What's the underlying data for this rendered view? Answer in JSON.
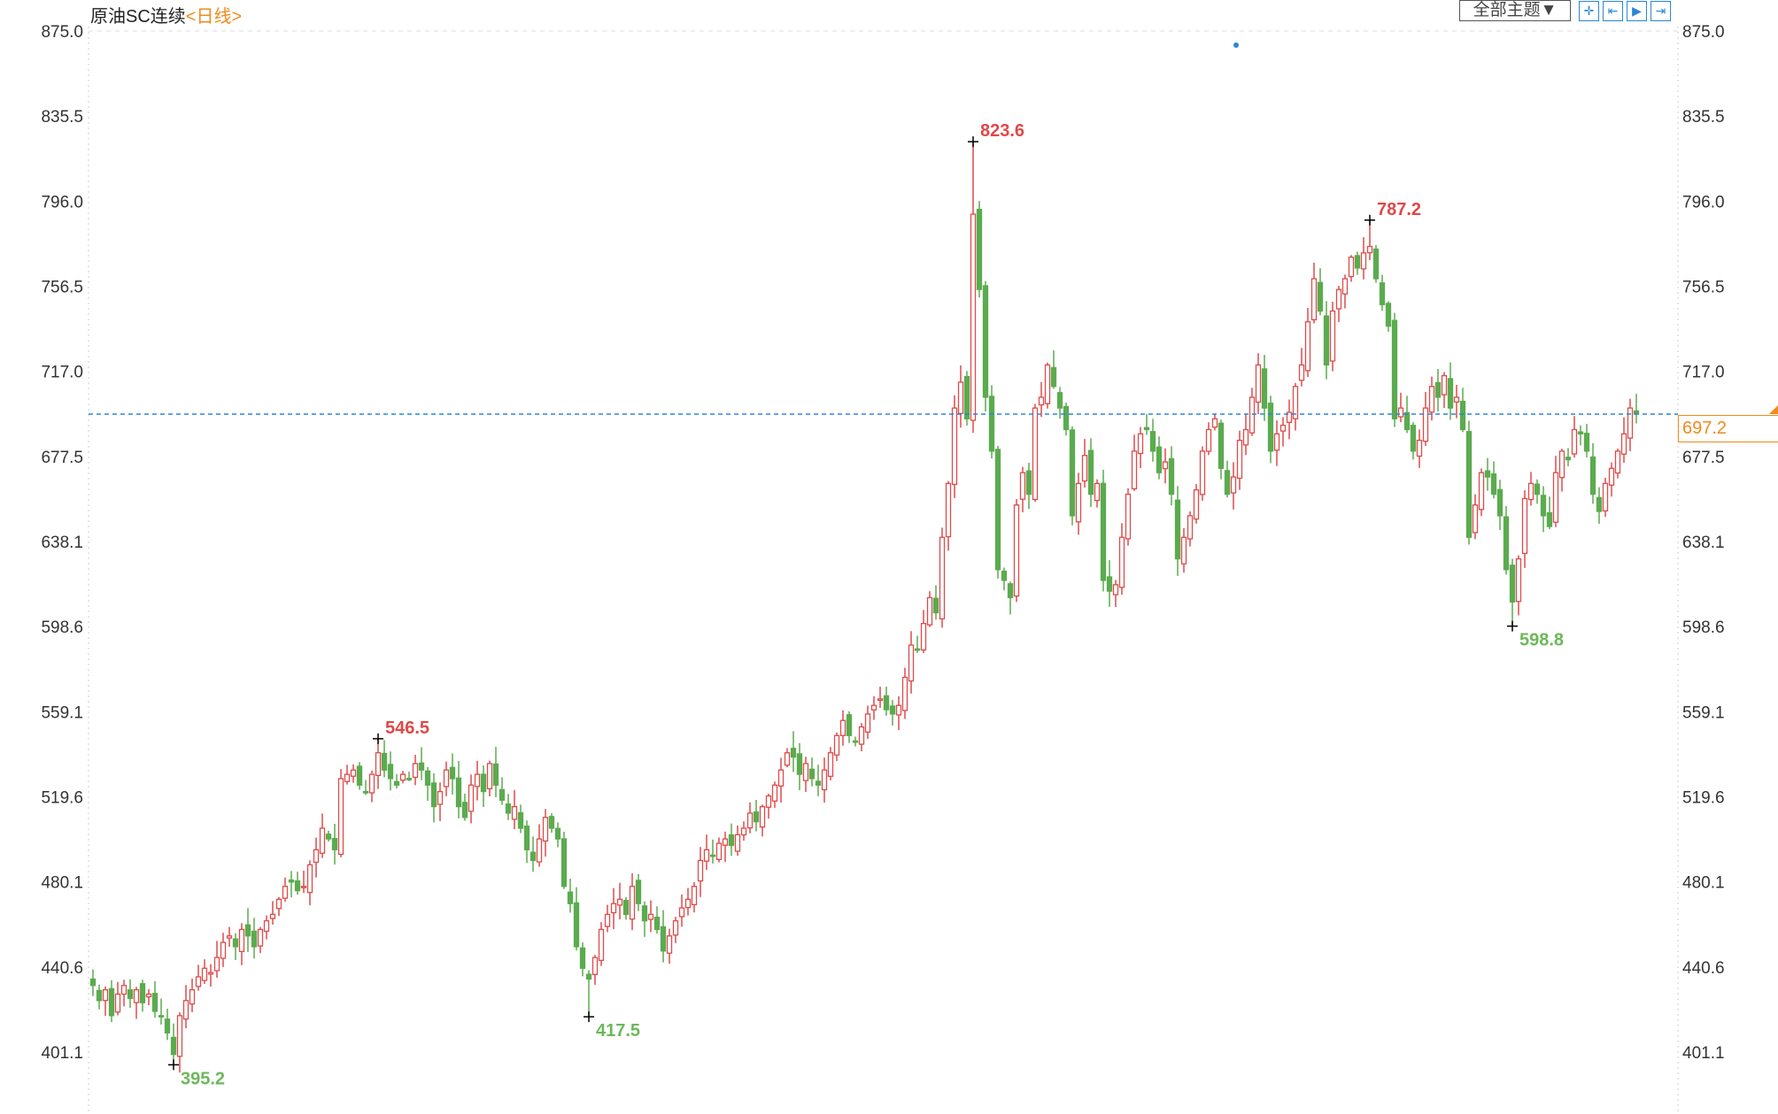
{
  "header": {
    "instrument": "原油SC连续",
    "period": "<日线>"
  },
  "toolbar": {
    "theme_select": "全部主题▼",
    "icons": [
      "crosshair-icon",
      "zoom-range-icon",
      "play-icon",
      "goto-end-icon"
    ]
  },
  "current_price": "697.2",
  "colors": {
    "up": "#dd4b4b",
    "down": "#5bab4f",
    "price_line": "#2b86d6",
    "accent": "#f08a1c"
  },
  "chart_data": {
    "type": "candlestick",
    "title": "原油SC连续",
    "ylim": [
      380,
      880
    ],
    "yticks": [
      "875.0",
      "835.5",
      "796.0",
      "756.5",
      "717.0",
      "677.5",
      "638.1",
      "598.6",
      "559.1",
      "519.6",
      "480.1",
      "440.6",
      "401.1"
    ],
    "grid": false,
    "current_price": 697.2,
    "annotations": [
      {
        "index": 13,
        "label": "395.2",
        "type": "low",
        "value": 395.2
      },
      {
        "index": 46,
        "label": "546.5",
        "type": "high",
        "value": 546.5
      },
      {
        "index": 80,
        "label": "417.5",
        "type": "low",
        "value": 417.5
      },
      {
        "index": 142,
        "label": "823.6",
        "type": "high",
        "value": 823.6
      },
      {
        "index": 206,
        "label": "787.2",
        "type": "high",
        "value": 787.2
      },
      {
        "index": 229,
        "label": "598.8",
        "type": "low",
        "value": 598.8
      }
    ],
    "close": [
      432,
      425,
      430,
      418,
      428,
      432,
      426,
      430,
      424,
      428,
      420,
      418,
      410,
      400,
      418,
      425,
      430,
      436,
      440,
      438,
      445,
      452,
      455,
      450,
      458,
      455,
      450,
      458,
      462,
      465,
      472,
      478,
      480,
      476,
      478,
      488,
      495,
      505,
      500,
      495,
      528,
      530,
      532,
      525,
      522,
      530,
      540,
      532,
      528,
      525,
      530,
      528,
      535,
      532,
      525,
      515,
      522,
      532,
      528,
      515,
      510,
      525,
      530,
      522,
      535,
      525,
      518,
      512,
      515,
      505,
      495,
      490,
      500,
      510,
      505,
      500,
      478,
      470,
      450,
      440,
      435,
      445,
      458,
      465,
      470,
      472,
      465,
      478,
      470,
      462,
      465,
      458,
      448,
      455,
      462,
      468,
      472,
      478,
      490,
      495,
      492,
      498,
      500,
      497,
      502,
      505,
      512,
      508,
      515,
      520,
      525,
      532,
      540,
      538,
      530,
      535,
      528,
      525,
      532,
      540,
      548,
      555,
      548,
      545,
      552,
      558,
      562,
      565,
      560,
      558,
      562,
      575,
      590,
      588,
      600,
      612,
      605,
      640,
      665,
      700,
      712,
      695,
      790,
      755,
      705,
      680,
      625,
      620,
      612,
      655,
      670,
      660,
      700,
      705,
      720,
      710,
      700,
      690,
      650,
      665,
      678,
      660,
      665,
      620,
      615,
      618,
      640,
      660,
      680,
      688,
      690,
      680,
      670,
      675,
      660,
      630,
      640,
      650,
      662,
      680,
      690,
      695,
      672,
      660,
      668,
      685,
      690,
      705,
      720,
      700,
      680,
      688,
      692,
      698,
      710,
      720,
      740,
      760,
      745,
      720,
      745,
      755,
      760,
      770,
      765,
      772,
      775,
      760,
      748,
      738,
      695,
      700,
      690,
      680,
      685,
      700,
      710,
      705,
      715,
      700,
      705,
      690,
      640,
      655,
      670,
      668,
      660,
      650,
      625,
      610,
      630,
      658,
      665,
      660,
      650,
      645,
      670,
      680,
      676,
      690,
      688,
      680,
      660,
      652,
      665,
      672,
      680,
      688,
      700,
      697.2
    ]
  }
}
